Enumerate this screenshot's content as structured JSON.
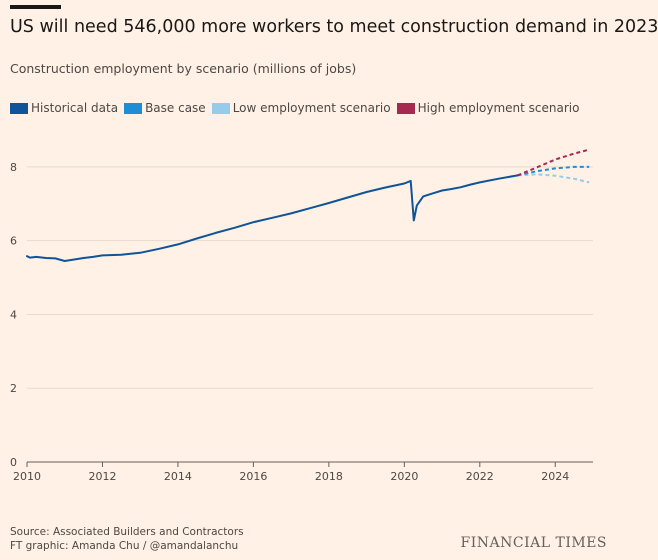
{
  "header": {
    "title": "US will need 546,000 more workers to meet construction demand in 2023",
    "subtitle": "Construction employment by scenario (millions of jobs)"
  },
  "legend": [
    {
      "label": "Historical data",
      "color": "#0f5499"
    },
    {
      "label": "Base case",
      "color": "#1f8cd6"
    },
    {
      "label": "Low employment scenario",
      "color": "#96cce9"
    },
    {
      "label": "High employment scenario",
      "color": "#a6294f"
    }
  ],
  "footer": {
    "source": "Source: Associated Builders and Contractors",
    "credit": "FT graphic: Amanda Chu / @amandalanchu",
    "brand": "FINANCIAL TIMES"
  },
  "chart_data": {
    "type": "line",
    "title": "US will need 546,000 more workers to meet construction demand in 2023",
    "subtitle": "Construction employment by scenario (millions of jobs)",
    "xlabel": "",
    "ylabel": "",
    "xlim": [
      2010,
      2025
    ],
    "ylim": [
      0,
      9
    ],
    "x_ticks": [
      2010,
      2012,
      2014,
      2016,
      2018,
      2020,
      2022,
      2024
    ],
    "y_ticks": [
      0,
      2,
      4,
      6,
      8
    ],
    "grid": true,
    "legend_position": "top-left",
    "series": [
      {
        "name": "Historical data",
        "color": "#0f5499",
        "style": "solid",
        "points": [
          [
            2010.0,
            5.58
          ],
          [
            2010.08,
            5.54
          ],
          [
            2010.25,
            5.56
          ],
          [
            2010.5,
            5.53
          ],
          [
            2010.75,
            5.52
          ],
          [
            2011.0,
            5.45
          ],
          [
            2011.25,
            5.49
          ],
          [
            2011.5,
            5.53
          ],
          [
            2011.75,
            5.56
          ],
          [
            2012.0,
            5.6
          ],
          [
            2012.5,
            5.62
          ],
          [
            2013.0,
            5.67
          ],
          [
            2013.5,
            5.78
          ],
          [
            2014.0,
            5.9
          ],
          [
            2014.5,
            6.06
          ],
          [
            2015.0,
            6.21
          ],
          [
            2015.5,
            6.35
          ],
          [
            2016.0,
            6.5
          ],
          [
            2016.5,
            6.62
          ],
          [
            2017.0,
            6.74
          ],
          [
            2017.5,
            6.88
          ],
          [
            2018.0,
            7.02
          ],
          [
            2018.5,
            7.17
          ],
          [
            2019.0,
            7.32
          ],
          [
            2019.5,
            7.44
          ],
          [
            2020.0,
            7.55
          ],
          [
            2020.17,
            7.62
          ],
          [
            2020.25,
            6.55
          ],
          [
            2020.33,
            6.95
          ],
          [
            2020.5,
            7.2
          ],
          [
            2020.75,
            7.28
          ],
          [
            2021.0,
            7.36
          ],
          [
            2021.25,
            7.4
          ],
          [
            2021.5,
            7.45
          ],
          [
            2021.75,
            7.52
          ],
          [
            2022.0,
            7.58
          ],
          [
            2022.5,
            7.68
          ],
          [
            2023.0,
            7.77
          ]
        ]
      },
      {
        "name": "Base case",
        "color": "#1f8cd6",
        "style": "dashed",
        "points": [
          [
            2023.0,
            7.77
          ],
          [
            2023.5,
            7.88
          ],
          [
            2024.0,
            7.96
          ],
          [
            2024.5,
            8.0
          ],
          [
            2024.9,
            8.0
          ]
        ]
      },
      {
        "name": "Low employment scenario",
        "color": "#96cce9",
        "style": "dashed",
        "points": [
          [
            2023.0,
            7.77
          ],
          [
            2023.5,
            7.8
          ],
          [
            2024.0,
            7.76
          ],
          [
            2024.5,
            7.68
          ],
          [
            2024.9,
            7.58
          ]
        ]
      },
      {
        "name": "High employment scenario",
        "color": "#a6294f",
        "style": "dashed",
        "points": [
          [
            2023.0,
            7.77
          ],
          [
            2023.5,
            7.98
          ],
          [
            2024.0,
            8.2
          ],
          [
            2024.5,
            8.36
          ],
          [
            2024.9,
            8.47
          ]
        ]
      }
    ]
  }
}
